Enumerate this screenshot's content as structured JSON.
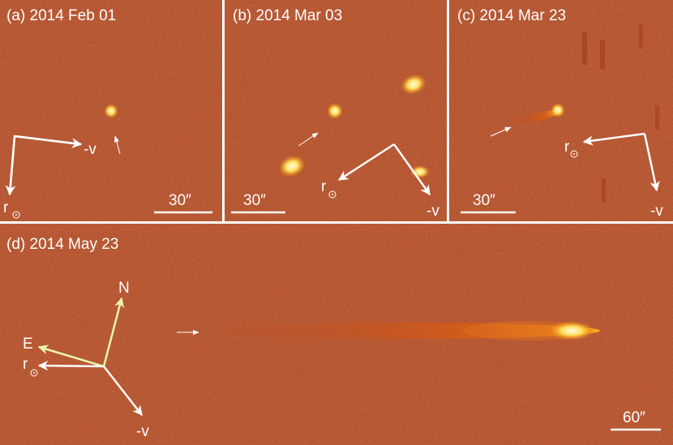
{
  "panels": [
    {
      "title": "(a) 2014 Feb 01",
      "velocity_label": "-v",
      "sun_label": "r",
      "scale_bar": "30″"
    },
    {
      "title": "(b) 2014 Mar 03",
      "velocity_label": "-v",
      "sun_label": "r",
      "scale_bar": "30″"
    },
    {
      "title": "(c) 2014 Mar 23",
      "velocity_label": "-v",
      "sun_label": "r",
      "scale_bar": "30″"
    },
    {
      "title": "(d) 2014 May 23",
      "velocity_label": "-v",
      "sun_label": "r",
      "scale_bar": "60″",
      "north_label": "N",
      "east_label": "E"
    }
  ]
}
